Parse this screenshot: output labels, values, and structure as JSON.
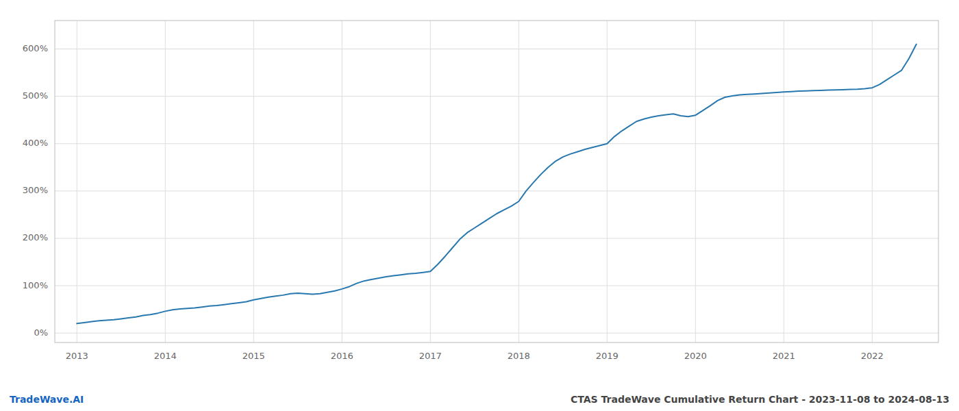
{
  "chart_data": {
    "type": "line",
    "title": "CTAS TradeWave Cumulative Return Chart - 2023-11-08 to 2024-08-13",
    "annotations": [
      "TradeWave.AI"
    ],
    "x": [
      2013.0,
      2013.083,
      2013.167,
      2013.25,
      2013.333,
      2013.417,
      2013.5,
      2013.583,
      2013.667,
      2013.75,
      2013.833,
      2013.917,
      2014.0,
      2014.083,
      2014.167,
      2014.25,
      2014.333,
      2014.417,
      2014.5,
      2014.583,
      2014.667,
      2014.75,
      2014.833,
      2014.917,
      2015.0,
      2015.083,
      2015.167,
      2015.25,
      2015.333,
      2015.417,
      2015.5,
      2015.583,
      2015.667,
      2015.75,
      2015.833,
      2015.917,
      2016.0,
      2016.083,
      2016.167,
      2016.25,
      2016.333,
      2016.417,
      2016.5,
      2016.583,
      2016.667,
      2016.75,
      2016.833,
      2016.917,
      2017.0,
      2017.083,
      2017.167,
      2017.25,
      2017.333,
      2017.417,
      2017.5,
      2017.583,
      2017.667,
      2017.75,
      2017.833,
      2017.917,
      2018.0,
      2018.083,
      2018.167,
      2018.25,
      2018.333,
      2018.417,
      2018.5,
      2018.583,
      2018.667,
      2018.75,
      2018.833,
      2018.917,
      2019.0,
      2019.083,
      2019.167,
      2019.25,
      2019.333,
      2019.417,
      2019.5,
      2019.583,
      2019.667,
      2019.75,
      2019.833,
      2019.917,
      2020.0,
      2020.083,
      2020.167,
      2020.25,
      2020.333,
      2020.417,
      2020.5,
      2020.583,
      2020.667,
      2020.75,
      2020.833,
      2020.917,
      2021.0,
      2021.083,
      2021.167,
      2021.25,
      2021.333,
      2021.417,
      2021.5,
      2021.583,
      2021.667,
      2021.75,
      2021.833,
      2021.917,
      2022.0,
      2022.083,
      2022.167,
      2022.25,
      2022.333,
      2022.417,
      2022.5
    ],
    "values": [
      20,
      22,
      24,
      26,
      27,
      28,
      30,
      32,
      34,
      37,
      39,
      42,
      46,
      49,
      51,
      52,
      53,
      55,
      57,
      58,
      60,
      62,
      64,
      66,
      70,
      73,
      76,
      78,
      80,
      83,
      84,
      83,
      82,
      83,
      86,
      89,
      93,
      98,
      105,
      110,
      113,
      116,
      119,
      121,
      123,
      125,
      126,
      128,
      130,
      145,
      162,
      180,
      198,
      212,
      222,
      232,
      242,
      252,
      260,
      268,
      278,
      300,
      318,
      335,
      350,
      363,
      372,
      378,
      383,
      388,
      392,
      396,
      400,
      415,
      427,
      437,
      447,
      452,
      456,
      459,
      461,
      463,
      459,
      457,
      460,
      470,
      480,
      491,
      498,
      501,
      503,
      504,
      505,
      506,
      507,
      508,
      509,
      510,
      511,
      511.5,
      512,
      512.5,
      513,
      513.5,
      514,
      514.5,
      515,
      516,
      518,
      525,
      535,
      545,
      555,
      580,
      610
    ],
    "color": "#2878b0",
    "xlim": [
      2012.75,
      2022.75
    ],
    "xticks": [
      2013,
      2014,
      2015,
      2016,
      2017,
      2018,
      2019,
      2020,
      2021,
      2022
    ],
    "ylim": [
      -20,
      660
    ],
    "yticks": [
      {
        "value": 0,
        "label": "0%"
      },
      {
        "value": 100,
        "label": "100%"
      },
      {
        "value": 200,
        "label": "200%"
      },
      {
        "value": 300,
        "label": "300%"
      },
      {
        "value": 400,
        "label": "400%"
      },
      {
        "value": 500,
        "label": "500%"
      },
      {
        "value": 600,
        "label": "600%"
      }
    ],
    "grid": true
  }
}
